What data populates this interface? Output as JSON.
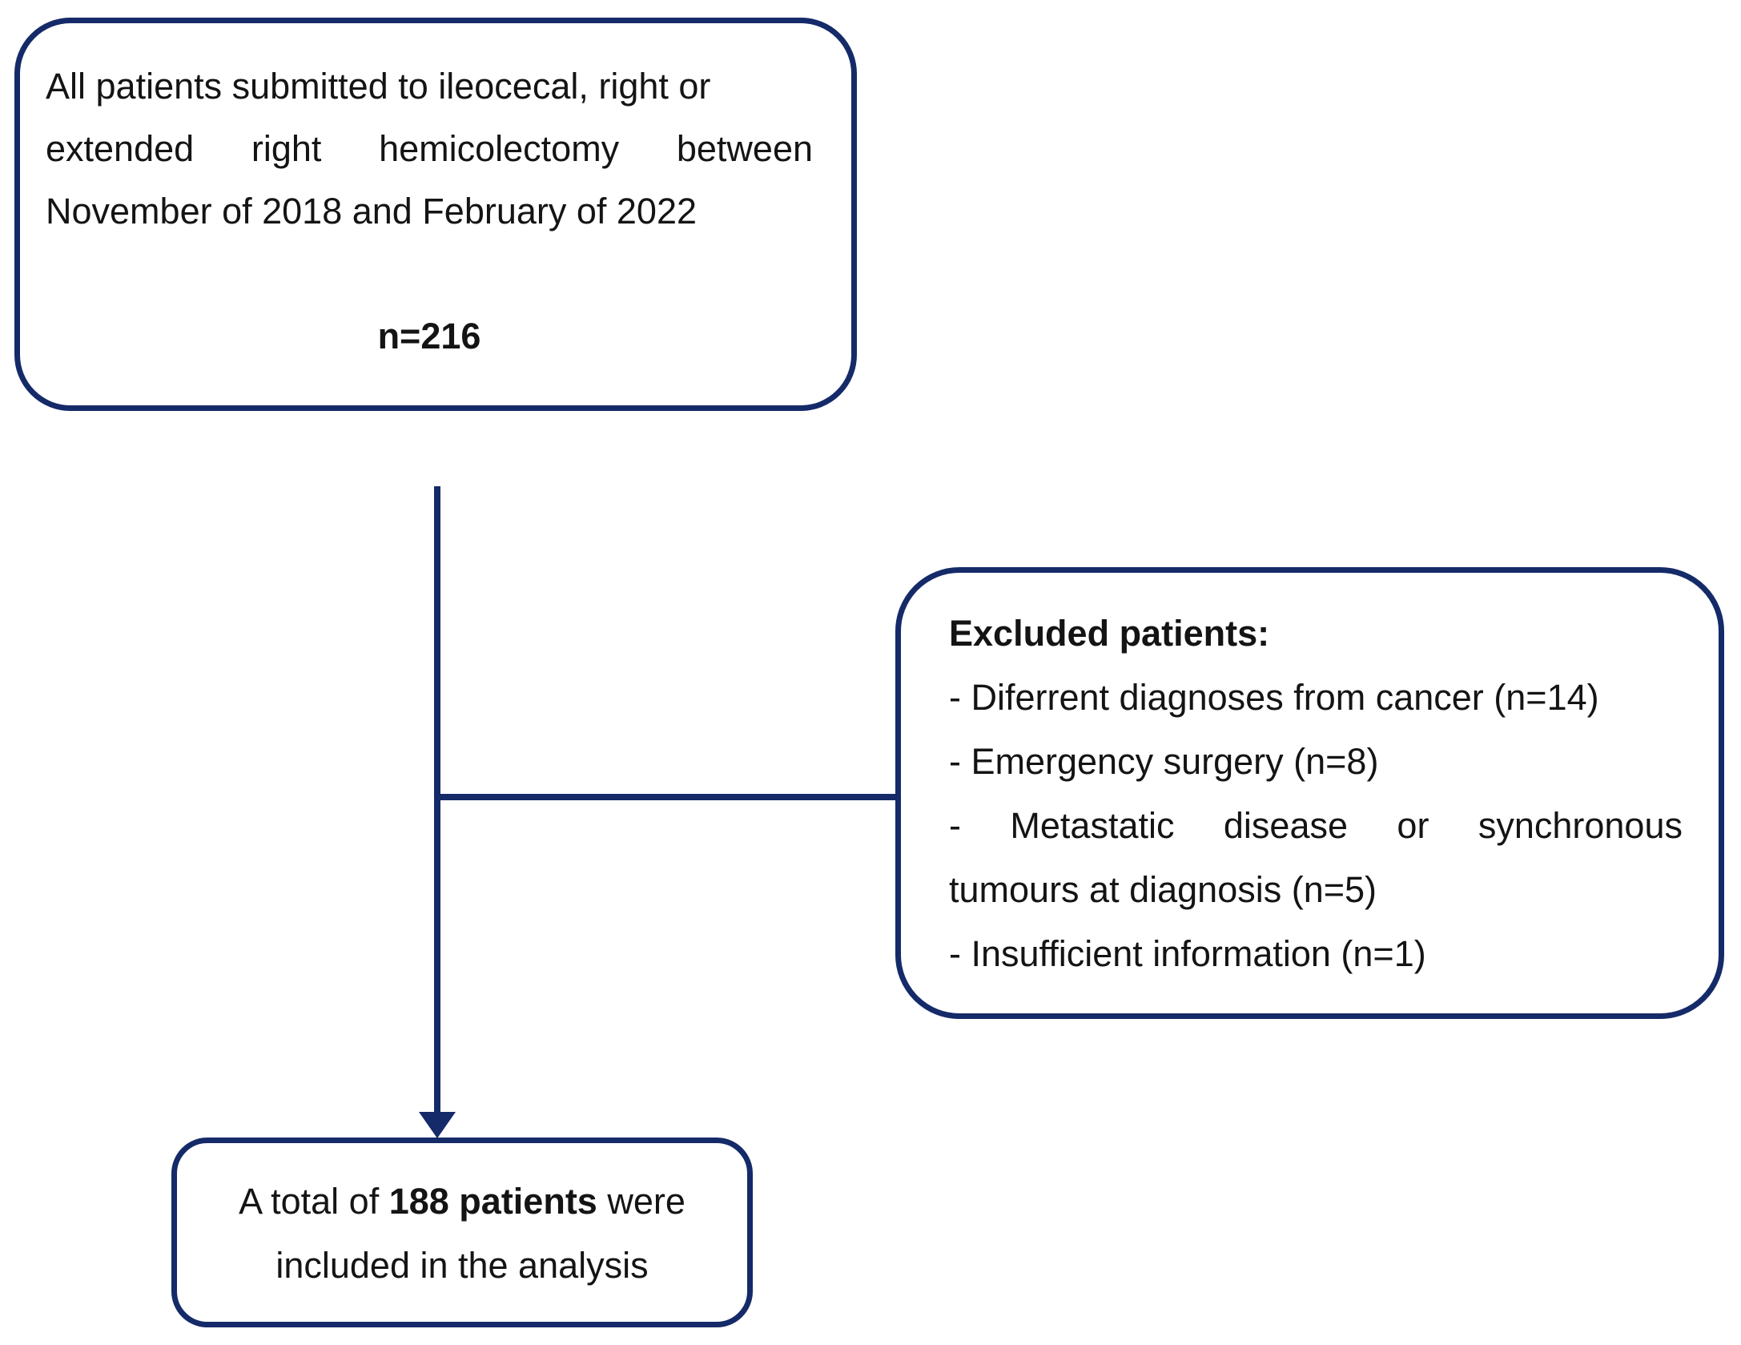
{
  "colors": {
    "line": "#152a68",
    "text": "#141414",
    "background": "#ffffff"
  },
  "source_box": {
    "line1": "All patients submitted to ileocecal, right or",
    "line2": "extended right hemicolectomy between",
    "line3": "November of 2018 and February of 2022",
    "count": "n=216"
  },
  "excluded_box": {
    "title": "Excluded patients:",
    "item1": "- Diferrent diagnoses from cancer (n=14)",
    "item2": "- Emergency surgery (n=8)",
    "item3_line1": "- Metastatic disease or synchronous",
    "item3_line2": "tumours at diagnosis (n=5)",
    "item4": "- Insufficient information (n=1)"
  },
  "included_box": {
    "line1_prefix": "A total of ",
    "line1_bold": "188 patients",
    "line1_suffix": " were",
    "line2": "included in the analysis"
  }
}
